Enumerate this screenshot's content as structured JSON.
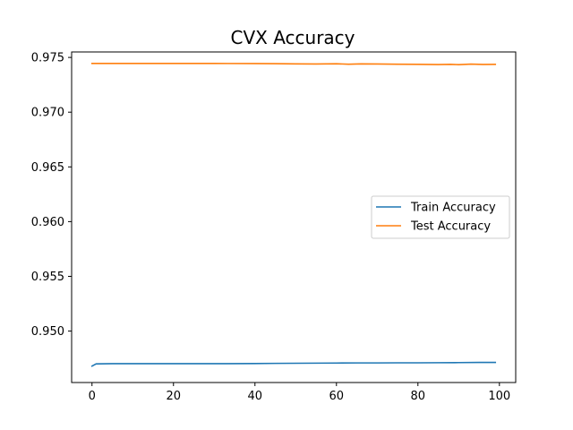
{
  "chart_data": {
    "type": "line",
    "title": "CVX Accuracy",
    "xlabel": "",
    "ylabel": "",
    "xlim": [
      -5,
      104
    ],
    "ylim": [
      0.9453,
      0.9755
    ],
    "xticks": [
      0,
      20,
      40,
      60,
      80,
      100
    ],
    "yticks": [
      0.95,
      0.955,
      0.96,
      0.965,
      0.97,
      0.975
    ],
    "ytick_labels": [
      "0.950",
      "0.955",
      "0.960",
      "0.965",
      "0.970",
      "0.975"
    ],
    "grid": false,
    "legend_position": "center-right",
    "series": [
      {
        "name": "Train Accuracy",
        "color": "#1f77b4",
        "points": [
          [
            0,
            0.9468
          ],
          [
            1,
            0.947
          ],
          [
            5,
            0.94702
          ],
          [
            10,
            0.94702
          ],
          [
            20,
            0.94702
          ],
          [
            30,
            0.94702
          ],
          [
            40,
            0.94703
          ],
          [
            45,
            0.94705
          ],
          [
            50,
            0.94706
          ],
          [
            55,
            0.94707
          ],
          [
            60,
            0.94708
          ],
          [
            65,
            0.94709
          ],
          [
            70,
            0.94709
          ],
          [
            75,
            0.9471
          ],
          [
            80,
            0.9471
          ],
          [
            85,
            0.94711
          ],
          [
            90,
            0.94712
          ],
          [
            95,
            0.94714
          ],
          [
            99,
            0.94714
          ]
        ]
      },
      {
        "name": "Test Accuracy",
        "color": "#ff7f0e",
        "points": [
          [
            0,
            0.97445
          ],
          [
            10,
            0.97445
          ],
          [
            20,
            0.97445
          ],
          [
            30,
            0.97445
          ],
          [
            40,
            0.97444
          ],
          [
            45,
            0.97443
          ],
          [
            50,
            0.97441
          ],
          [
            55,
            0.9744
          ],
          [
            60,
            0.97442
          ],
          [
            63,
            0.97438
          ],
          [
            66,
            0.97441
          ],
          [
            70,
            0.9744
          ],
          [
            75,
            0.97438
          ],
          [
            80,
            0.97437
          ],
          [
            85,
            0.97435
          ],
          [
            88,
            0.97437
          ],
          [
            90,
            0.97434
          ],
          [
            93,
            0.97439
          ],
          [
            96,
            0.97436
          ],
          [
            99,
            0.97437
          ]
        ]
      }
    ]
  }
}
